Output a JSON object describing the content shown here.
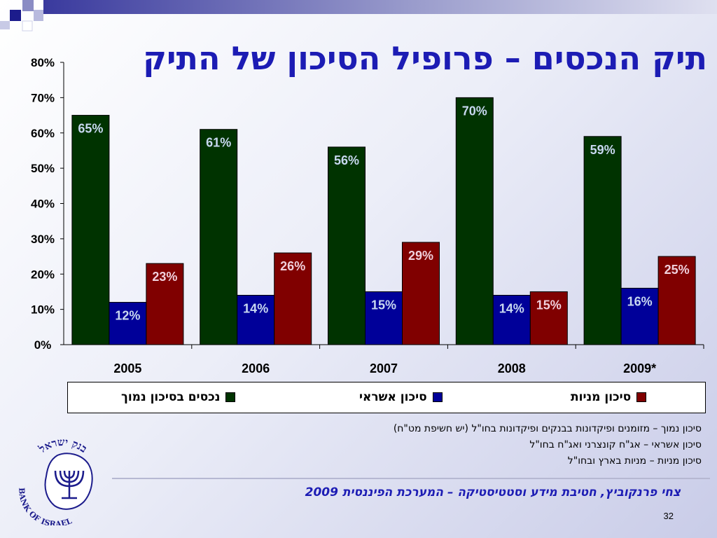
{
  "title": "תיק הנכסים – פרופיל הסיכון של התיק",
  "colors": {
    "title": "#1c1cb4",
    "green": "#003300",
    "blue": "#000099",
    "red": "#800000"
  },
  "chart_data": {
    "type": "bar",
    "categories": [
      "2005",
      "2006",
      "2007",
      "2008",
      "2009*"
    ],
    "series": [
      {
        "name": "נכסים בסיכון נמוך",
        "color": "#003300",
        "label_color": "#c8d8f0",
        "values": [
          65,
          61,
          56,
          70,
          59
        ]
      },
      {
        "name": "סיכון אשראי",
        "color": "#000099",
        "label_color": "#c8d8f0",
        "values": [
          12,
          14,
          15,
          14,
          16
        ]
      },
      {
        "name": "סיכון מניות",
        "color": "#800000",
        "label_color": "#f0d0dc",
        "values": [
          23,
          26,
          29,
          15,
          25
        ]
      }
    ],
    "ylim": [
      0,
      80
    ],
    "yticks": [
      0,
      10,
      20,
      30,
      40,
      50,
      60,
      70,
      80
    ],
    "ytick_labels": [
      "0%",
      "10%",
      "20%",
      "30%",
      "40%",
      "50%",
      "60%",
      "70%",
      "80%"
    ],
    "value_suffix": "%",
    "grid": false,
    "legend_position": "bottom"
  },
  "legend": [
    {
      "label": "סיכון מניות",
      "color": "#800000"
    },
    {
      "label": "סיכון אשראי",
      "color": "#000099"
    },
    {
      "label": "נכסים בסיכון נמוך",
      "color": "#003300"
    }
  ],
  "notes": [
    "סיכון נמוך – מזומנים ופיקדונות בבנקים ופיקדונות בחו\"ל (יש חשיפת מט\"ח)",
    "סיכון אשראי – אג\"ח קונצרני ואג\"ח בחו\"ל",
    "סיכון מניות – מניות בארץ ובחו\"ל"
  ],
  "footer": "צחי פרנקוביץ, חטיבת מידע וסטטיסטיקה – המערכת הפיננסית 2009",
  "page_number": "32",
  "logo": {
    "hebrew": "בנק ישראל",
    "english": "BANK OF ISRAEL",
    "icon": "menorah-icon"
  }
}
